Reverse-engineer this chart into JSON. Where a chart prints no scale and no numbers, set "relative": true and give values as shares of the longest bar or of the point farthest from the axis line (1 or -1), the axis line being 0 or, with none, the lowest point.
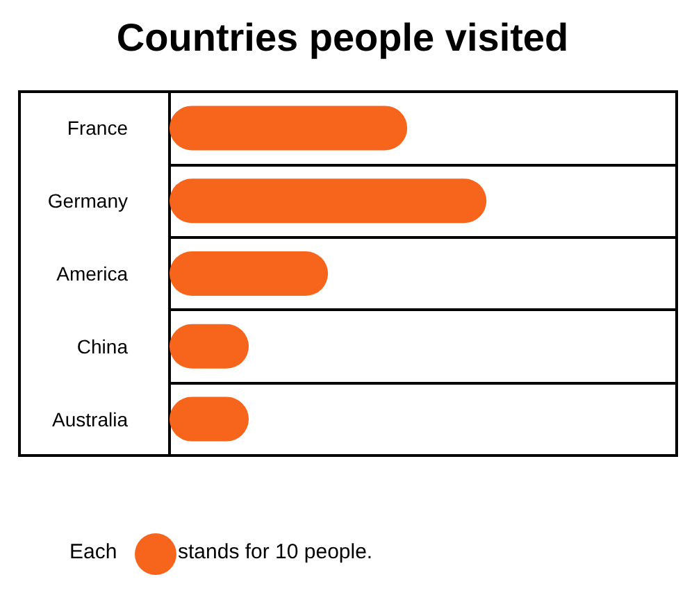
{
  "chart_data": {
    "type": "bar",
    "orientation": "horizontal",
    "relative": true,
    "title": "Countries people visited",
    "categories": [
      "France",
      "Germany",
      "America",
      "China",
      "Australia"
    ],
    "values": [
      0.75,
      1,
      0.5,
      0.25,
      0.25
    ],
    "color": "#f7651d",
    "grid": "y",
    "annotations": [
      "Each",
      "stands for 10 people."
    ]
  }
}
